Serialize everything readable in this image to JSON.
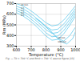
{
  "chart_data": {
    "type": "line",
    "xlabel": "Temperature (°C)",
    "ylabel": "Rm (MPa)",
    "caption": "Fig. — T0 = 700 °C and Rm0 = 700 °C source figure [13]",
    "xlim": [
      600,
      1000
    ],
    "ylim": [
      300,
      700
    ],
    "xticks": [
      600,
      700,
      800,
      900,
      1000
    ],
    "yticks": [
      300,
      400,
      500,
      600,
      700
    ],
    "grid": true,
    "color": "#66ccee",
    "series": [
      {
        "x": [
          600,
          640,
          680,
          720,
          760,
          800,
          840,
          880,
          920,
          960,
          1000
        ],
        "values": [
          700,
          680,
          650,
          610,
          565,
          520,
          490,
          500,
          545,
          610,
          680
        ]
      },
      {
        "x": [
          600,
          640,
          680,
          720,
          760,
          800,
          840,
          880,
          920,
          960,
          1000
        ],
        "values": [
          675,
          655,
          622,
          580,
          535,
          485,
          452,
          460,
          508,
          578,
          655
        ]
      },
      {
        "x": [
          600,
          640,
          680,
          720,
          760,
          800,
          840,
          880,
          920,
          960,
          1000
        ],
        "values": [
          655,
          632,
          598,
          555,
          507,
          455,
          420,
          428,
          478,
          550,
          632
        ]
      },
      {
        "x": [
          600,
          640,
          680,
          720,
          760,
          800,
          840,
          880,
          920,
          960,
          1000
        ],
        "values": [
          635,
          610,
          574,
          530,
          480,
          425,
          388,
          395,
          447,
          522,
          608
        ]
      },
      {
        "x": [
          600,
          640,
          680,
          720,
          760,
          800,
          840,
          880,
          920,
          960,
          1000
        ],
        "values": [
          615,
          588,
          550,
          505,
          452,
          395,
          356,
          363,
          416,
          494,
          584
        ]
      },
      {
        "x": [
          730,
          760,
          800,
          840,
          880,
          920,
          960,
          1000
        ],
        "values": [
          560,
          530,
          480,
          430,
          372,
          348,
          398,
          480
        ]
      },
      {
        "x": [
          750,
          780,
          820,
          860,
          900,
          940,
          980,
          1000
        ],
        "values": [
          545,
          510,
          456,
          400,
          345,
          320,
          370,
          440
        ]
      }
    ],
    "annotations": [
      {
        "text": "10 min",
        "x": 630,
        "y": 685
      },
      {
        "text": "1 h",
        "x": 630,
        "y": 660
      },
      {
        "text": "2 h",
        "x": 630,
        "y": 638
      },
      {
        "text": "4 h",
        "x": 630,
        "y": 615
      },
      {
        "text": "8 h",
        "x": 630,
        "y": 592
      },
      {
        "text": "10 min",
        "x": 880,
        "y": 378
      },
      {
        "text": "100 min",
        "x": 880,
        "y": 342
      }
    ]
  }
}
